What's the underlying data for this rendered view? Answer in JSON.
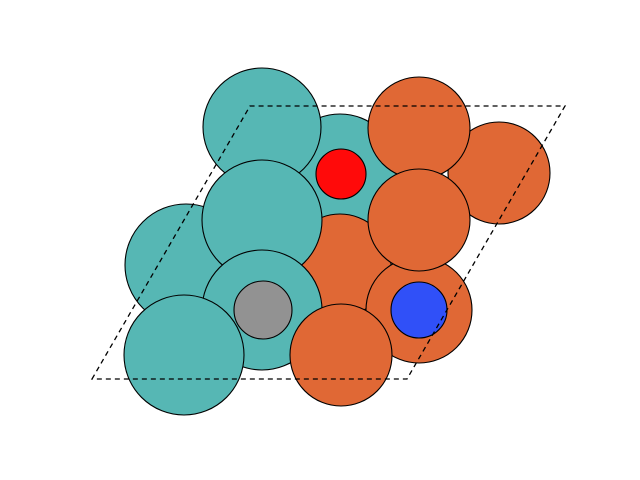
{
  "diagram": {
    "type": "atomic-surface-top-view",
    "colors": {
      "teal": "#56b7b4",
      "orange": "#e06835",
      "red": "#ff0a0a",
      "blue": "#3050f8",
      "gray": "#929292",
      "outline": "#000000",
      "cell": "#000000"
    },
    "atoms": [
      {
        "kind": "substrate-teal",
        "color": "teal"
      },
      {
        "kind": "substrate-teal",
        "color": "teal"
      },
      {
        "kind": "substrate-teal",
        "color": "teal"
      },
      {
        "kind": "substrate-orange",
        "color": "orange"
      },
      {
        "kind": "substrate-orange",
        "color": "orange"
      },
      {
        "kind": "substrate-orange",
        "color": "orange"
      },
      {
        "kind": "substrate-teal",
        "color": "teal"
      },
      {
        "kind": "substrate-teal",
        "color": "teal"
      },
      {
        "kind": "substrate-orange",
        "color": "orange"
      },
      {
        "kind": "substrate-orange",
        "color": "orange"
      },
      {
        "kind": "substrate-teal",
        "color": "teal"
      },
      {
        "kind": "substrate-orange",
        "color": "orange"
      },
      {
        "kind": "adsorbate-red",
        "color": "red"
      },
      {
        "kind": "adsorbate-gray",
        "color": "gray"
      },
      {
        "kind": "adsorbate-blue",
        "color": "blue"
      }
    ]
  }
}
